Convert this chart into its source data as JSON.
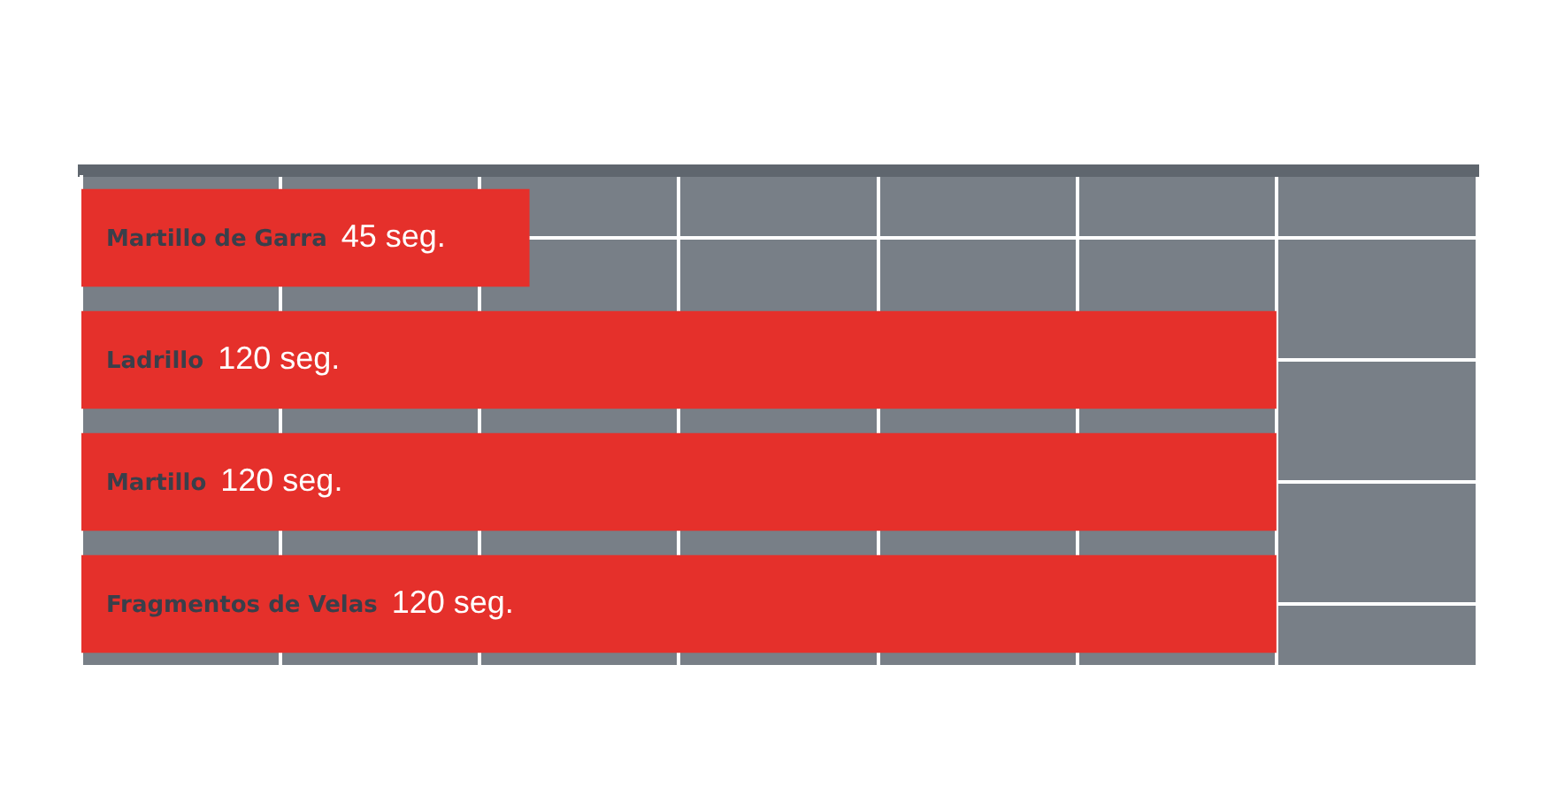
{
  "chart_data": {
    "type": "bar",
    "orientation": "horizontal",
    "categories": [
      "Martillo de Garra",
      "Ladrillo",
      "Martillo",
      "Fragmentos de Velas"
    ],
    "values": [
      45,
      120,
      120,
      120
    ],
    "value_labels": [
      "45 seg.",
      "120 seg.",
      "120 seg.",
      "120 seg."
    ],
    "color": "#e5302b",
    "xlim": [
      0,
      140
    ],
    "xticks": [
      {
        "value": 20,
        "label": null
      },
      {
        "value": 40,
        "label": null
      },
      {
        "value": 60,
        "label": null
      },
      {
        "value": 80,
        "label": null
      },
      {
        "value": 100,
        "label": null
      },
      {
        "value": 120,
        "label": null
      }
    ],
    "grid": true,
    "tick_labels": "y"
  }
}
